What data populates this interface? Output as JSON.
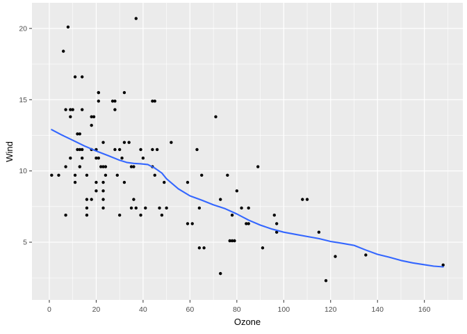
{
  "chart_data": {
    "type": "scatter",
    "title": "",
    "xlabel": "Ozone",
    "ylabel": "Wind",
    "xlim": [
      -7.4,
      176.4
    ],
    "ylim": [
      0.95,
      21.8
    ],
    "x_ticks": [
      0,
      20,
      40,
      60,
      80,
      100,
      120,
      140,
      160
    ],
    "x_minor_ticks": [
      10,
      30,
      50,
      70,
      90,
      110,
      130,
      150,
      170
    ],
    "y_ticks": [
      5,
      10,
      15,
      20
    ],
    "y_minor_ticks": [
      2.5,
      7.5,
      12.5,
      17.5
    ],
    "grid": true,
    "legend_position": "none",
    "colors": {
      "panel_bg": "#EBEBEB",
      "grid": "#FFFFFF",
      "point": "#000000",
      "smooth_line": "#3366FF",
      "tick_label": "#4D4D4D",
      "tick_mark": "#333333",
      "axis_title": "#000000",
      "outer_bg": "#FFFFFF"
    },
    "points": [
      [
        41,
        7.4
      ],
      [
        36,
        8
      ],
      [
        12,
        12.6
      ],
      [
        18,
        11.5
      ],
      [
        28,
        14.9
      ],
      [
        23,
        8.6
      ],
      [
        19,
        13.8
      ],
      [
        8,
        20.1
      ],
      [
        7,
        6.9
      ],
      [
        16,
        9.7
      ],
      [
        11,
        9.2
      ],
      [
        14,
        10.9
      ],
      [
        18,
        13.2
      ],
      [
        14,
        11.5
      ],
      [
        34,
        12
      ],
      [
        6,
        18.4
      ],
      [
        30,
        11.5
      ],
      [
        11,
        9.7
      ],
      [
        1,
        9.7
      ],
      [
        11,
        16.6
      ],
      [
        4,
        9.7
      ],
      [
        32,
        12
      ],
      [
        23,
        12
      ],
      [
        45,
        14.9
      ],
      [
        115,
        5.7
      ],
      [
        37,
        7.4
      ],
      [
        29,
        9.7
      ],
      [
        71,
        13.8
      ],
      [
        39,
        11.5
      ],
      [
        23,
        8
      ],
      [
        21,
        14.9
      ],
      [
        37,
        20.7
      ],
      [
        20,
        9.2
      ],
      [
        12,
        11.5
      ],
      [
        13,
        10.3
      ],
      [
        135,
        4.1
      ],
      [
        49,
        9.2
      ],
      [
        32,
        9.2
      ],
      [
        64,
        4.6
      ],
      [
        40,
        10.9
      ],
      [
        77,
        5.1
      ],
      [
        97,
        6.3
      ],
      [
        97,
        5.7
      ],
      [
        85,
        7.4
      ],
      [
        10,
        14.3
      ],
      [
        27,
        14.9
      ],
      [
        7,
        14.3
      ],
      [
        48,
        6.9
      ],
      [
        35,
        10.3
      ],
      [
        61,
        6.3
      ],
      [
        79,
        5.1
      ],
      [
        63,
        11.5
      ],
      [
        16,
        6.9
      ],
      [
        80,
        8.6
      ],
      [
        108,
        8
      ],
      [
        20,
        8.6
      ],
      [
        52,
        12
      ],
      [
        82,
        7.4
      ],
      [
        50,
        7.4
      ],
      [
        64,
        7.4
      ],
      [
        59,
        9.2
      ],
      [
        39,
        6.9
      ],
      [
        9,
        13.8
      ],
      [
        16,
        7.4
      ],
      [
        78,
        6.9
      ],
      [
        35,
        7.4
      ],
      [
        66,
        4.6
      ],
      [
        122,
        4
      ],
      [
        89,
        10.3
      ],
      [
        110,
        8
      ],
      [
        44,
        11.5
      ],
      [
        28,
        11.5
      ],
      [
        65,
        9.7
      ],
      [
        22,
        10.3
      ],
      [
        59,
        6.3
      ],
      [
        23,
        7.4
      ],
      [
        31,
        10.9
      ],
      [
        44,
        10.3
      ],
      [
        21,
        15.5
      ],
      [
        9,
        14.3
      ],
      [
        45,
        9.7
      ],
      [
        168,
        3.4
      ],
      [
        73,
        8
      ],
      [
        76,
        9.7
      ],
      [
        118,
        2.3
      ],
      [
        84,
        6.3
      ],
      [
        85,
        6.3
      ],
      [
        96,
        6.9
      ],
      [
        78,
        5.1
      ],
      [
        73,
        2.8
      ],
      [
        91,
        4.6
      ],
      [
        47,
        7.4
      ],
      [
        32,
        15.5
      ],
      [
        20,
        10.9
      ],
      [
        23,
        10.3
      ],
      [
        21,
        10.9
      ],
      [
        24,
        9.7
      ],
      [
        44,
        14.9
      ],
      [
        21,
        15.5
      ],
      [
        28,
        14.3
      ],
      [
        9,
        10.9
      ],
      [
        13,
        11.5
      ],
      [
        46,
        11.5
      ],
      [
        18,
        13.8
      ],
      [
        13,
        10.3
      ],
      [
        24,
        10.3
      ],
      [
        16,
        8
      ],
      [
        13,
        12.6
      ],
      [
        23,
        9.2
      ],
      [
        36,
        10.3
      ],
      [
        7,
        10.3
      ],
      [
        14,
        16.6
      ],
      [
        30,
        6.9
      ],
      [
        14,
        14.3
      ],
      [
        18,
        8
      ],
      [
        20,
        11.5
      ]
    ],
    "smooth_line": [
      [
        1,
        12.9
      ],
      [
        5,
        12.55
      ],
      [
        10,
        12.15
      ],
      [
        15,
        11.75
      ],
      [
        20,
        11.4
      ],
      [
        25,
        11.08
      ],
      [
        30,
        10.75
      ],
      [
        33,
        10.6
      ],
      [
        36,
        10.53
      ],
      [
        39,
        10.5
      ],
      [
        42,
        10.45
      ],
      [
        45,
        10.2
      ],
      [
        48,
        9.85
      ],
      [
        50,
        9.45
      ],
      [
        55,
        8.75
      ],
      [
        60,
        8.25
      ],
      [
        65,
        7.95
      ],
      [
        70,
        7.62
      ],
      [
        75,
        7.35
      ],
      [
        80,
        6.98
      ],
      [
        85,
        6.55
      ],
      [
        90,
        6.2
      ],
      [
        95,
        5.92
      ],
      [
        100,
        5.7
      ],
      [
        105,
        5.55
      ],
      [
        110,
        5.4
      ],
      [
        115,
        5.25
      ],
      [
        120,
        5.05
      ],
      [
        125,
        4.92
      ],
      [
        130,
        4.78
      ],
      [
        135,
        4.45
      ],
      [
        140,
        4.15
      ],
      [
        145,
        3.95
      ],
      [
        150,
        3.72
      ],
      [
        155,
        3.55
      ],
      [
        160,
        3.42
      ],
      [
        164,
        3.32
      ],
      [
        168,
        3.27
      ]
    ]
  }
}
